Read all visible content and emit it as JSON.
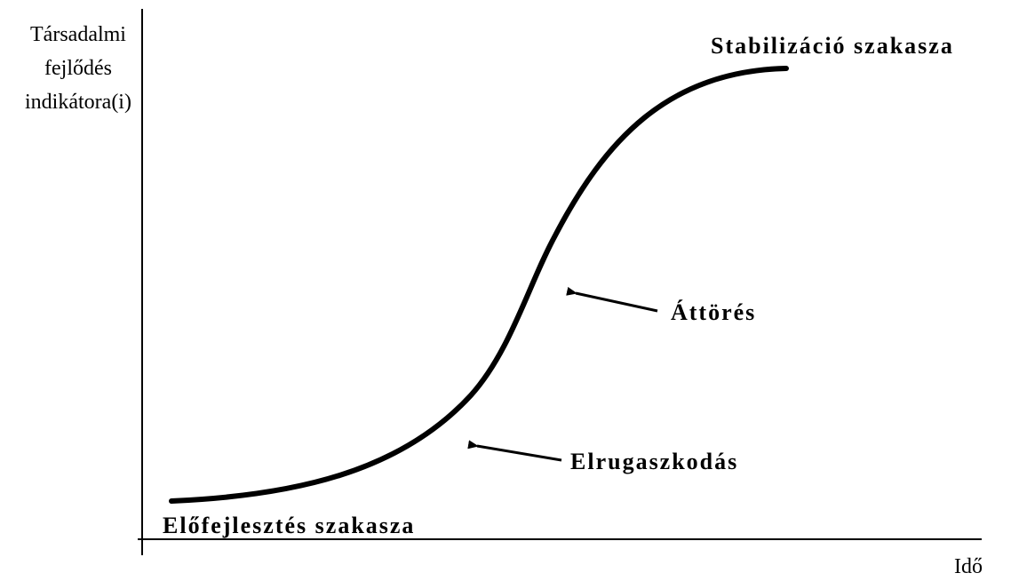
{
  "axes": {
    "y_label": [
      "Társadalmi",
      "fejlődés",
      "indikátora(i)"
    ],
    "x_label": "Idő"
  },
  "labels": {
    "stabilization": "Stabilizáció szakasza",
    "breakthrough": "Áttörés",
    "takeoff": "Elrugaszkodás",
    "predevelopment": "Előfejlesztés szakasza"
  }
}
